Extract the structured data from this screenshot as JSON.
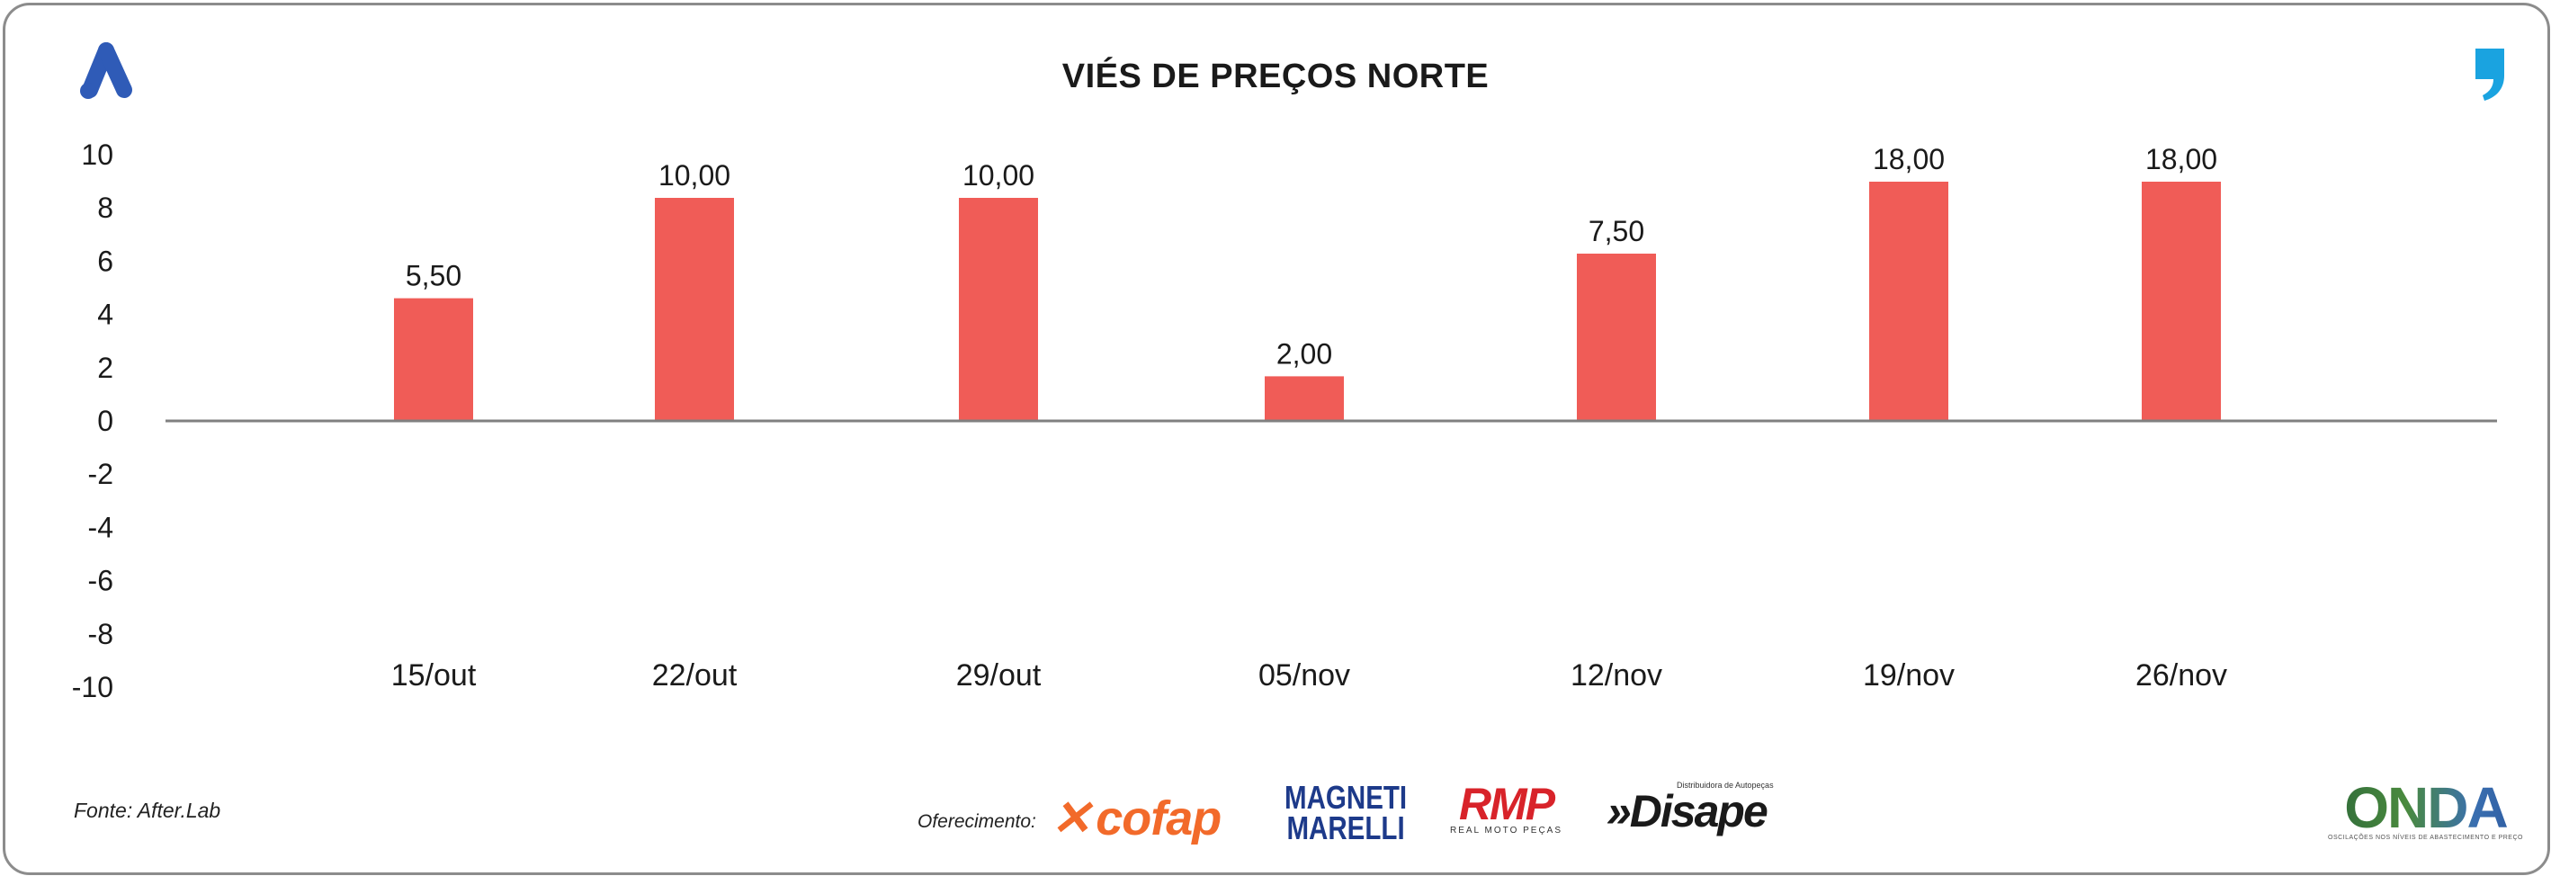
{
  "header": {
    "title": "VIÉS DE PREÇOS NORTE"
  },
  "footer": {
    "source": "Fonte: After.Lab",
    "sponsor_label": "Oferecimento:",
    "sponsors": {
      "cofap": "cofap",
      "magneti": "MAGNETI",
      "marelli": "MARELLI",
      "rmp": "RMP",
      "rmp_sub": "REAL MOTO PEÇAS",
      "disape_top": "Distribuidora de Autopeças",
      "disape": "»Disape",
      "onda": "ONDA",
      "onda_sub": "OSCILAÇÕES NOS NÍVEIS DE ABASTECIMENTO E PREÇO"
    }
  },
  "colors": {
    "bar": "#f05c57",
    "axis": "#808080",
    "brand_blue": "#2f5bb7",
    "quote_blue": "#1aa3e0"
  },
  "icons": {
    "brand": "brand-a-logo-icon",
    "quote": "quote-mark-icon"
  },
  "chart_data": {
    "type": "bar",
    "title": "VIÉS DE PREÇOS NORTE",
    "categories": [
      "15/out",
      "22/out",
      "29/out",
      "05/nov",
      "12/nov",
      "19/nov",
      "26/nov"
    ],
    "values": [
      5.5,
      10.0,
      10.0,
      2.0,
      7.5,
      18.0,
      18.0
    ],
    "data_labels": [
      "5,50",
      "10,00",
      "10,00",
      "2,00",
      "7,50",
      "18,00",
      "18,00"
    ],
    "yticks": [
      "10",
      "8",
      "6",
      "4",
      "2",
      "0",
      "-2",
      "-4",
      "-6",
      "-8",
      "-10"
    ],
    "ylim": [
      -10,
      10
    ],
    "grid": false,
    "legend": "none"
  }
}
